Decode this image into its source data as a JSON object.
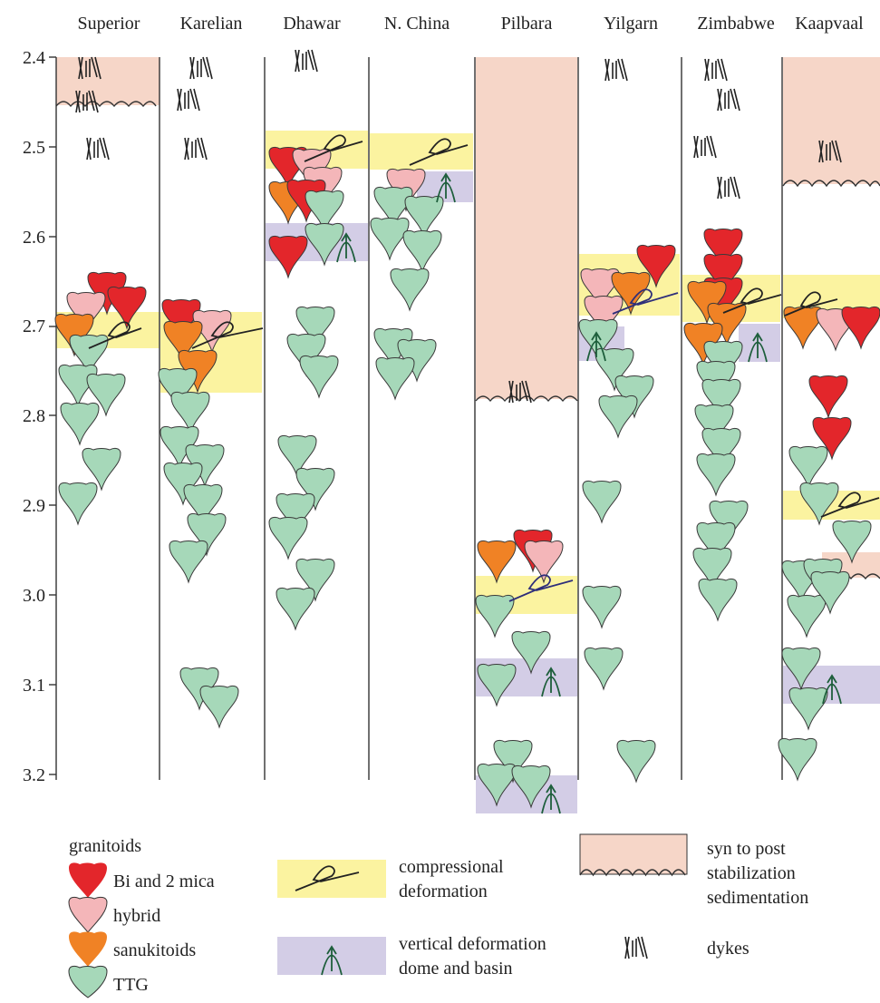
{
  "cratons": [
    {
      "name": "Superior"
    },
    {
      "name": "Karelian"
    },
    {
      "name": "Dhawar"
    },
    {
      "name": "N. China"
    },
    {
      "name": "Pilbara"
    },
    {
      "name": "Yilgarn"
    },
    {
      "name": "Zimbabwe"
    },
    {
      "name": "Kaapvaal"
    }
  ],
  "y_axis": {
    "ticks": [
      "2.4",
      "2.5",
      "2.6",
      "2.7",
      "2.8",
      "2.9",
      "3.0",
      "3.1",
      "3.2"
    ]
  },
  "colors": {
    "bi_2mica": "#e3262b",
    "hybrid": "#f4b6b9",
    "sanukitoids": "#f08225",
    "ttg": "#a6d8b9",
    "compressional": "#fbf3a0",
    "vertical": "#d3cde6",
    "sedimentation": "#f6d6c8",
    "line": "#333333"
  },
  "legend": {
    "granitoids_title": "granitoids",
    "bi_2mica": "Bi and 2 mica",
    "hybrid": "hybrid",
    "sanukitoids": "sanukitoids",
    "ttg": "TTG",
    "compressional_line1": "compressional",
    "compressional_line2": "deformation",
    "vertical_line1": "vertical deformation",
    "vertical_line2": "dome and basin",
    "sedimentation_line1": "syn to post",
    "sedimentation_line2": "stabilization",
    "sedimentation_line3": "sedimentation",
    "dykes": "dykes"
  }
}
